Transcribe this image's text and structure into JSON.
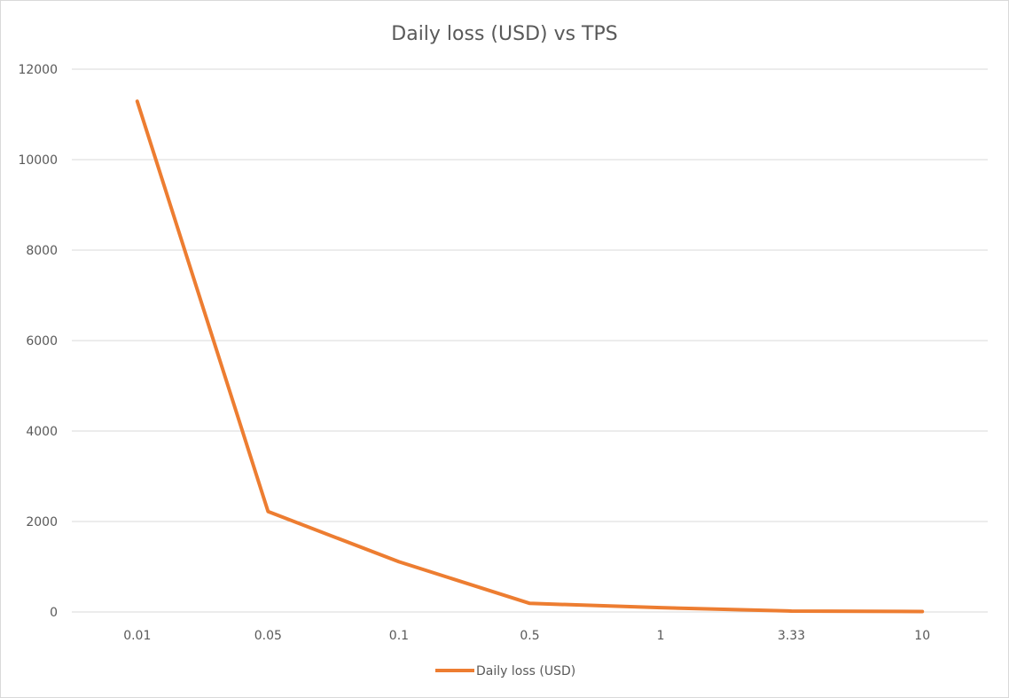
{
  "chart_data": {
    "type": "line",
    "title": "Daily loss (USD) vs TPS",
    "xlabel": "",
    "ylabel": "",
    "categories": [
      "0.01",
      "0.05",
      "0.1",
      "0.5",
      "1",
      "3.33",
      "10"
    ],
    "series": [
      {
        "name": "Daily loss (USD)",
        "values": [
          11290,
          2220,
          1110,
          190,
          95,
          20,
          10
        ]
      }
    ],
    "ylim": [
      0,
      12000
    ],
    "yticks": [
      "0",
      "2000",
      "4000",
      "6000",
      "8000",
      "10000",
      "12000"
    ],
    "grid": "horizontal",
    "legend_position": "bottom",
    "colors": {
      "series": "#ED7D31",
      "grid": "#d9d9d9",
      "text": "#595959"
    }
  }
}
